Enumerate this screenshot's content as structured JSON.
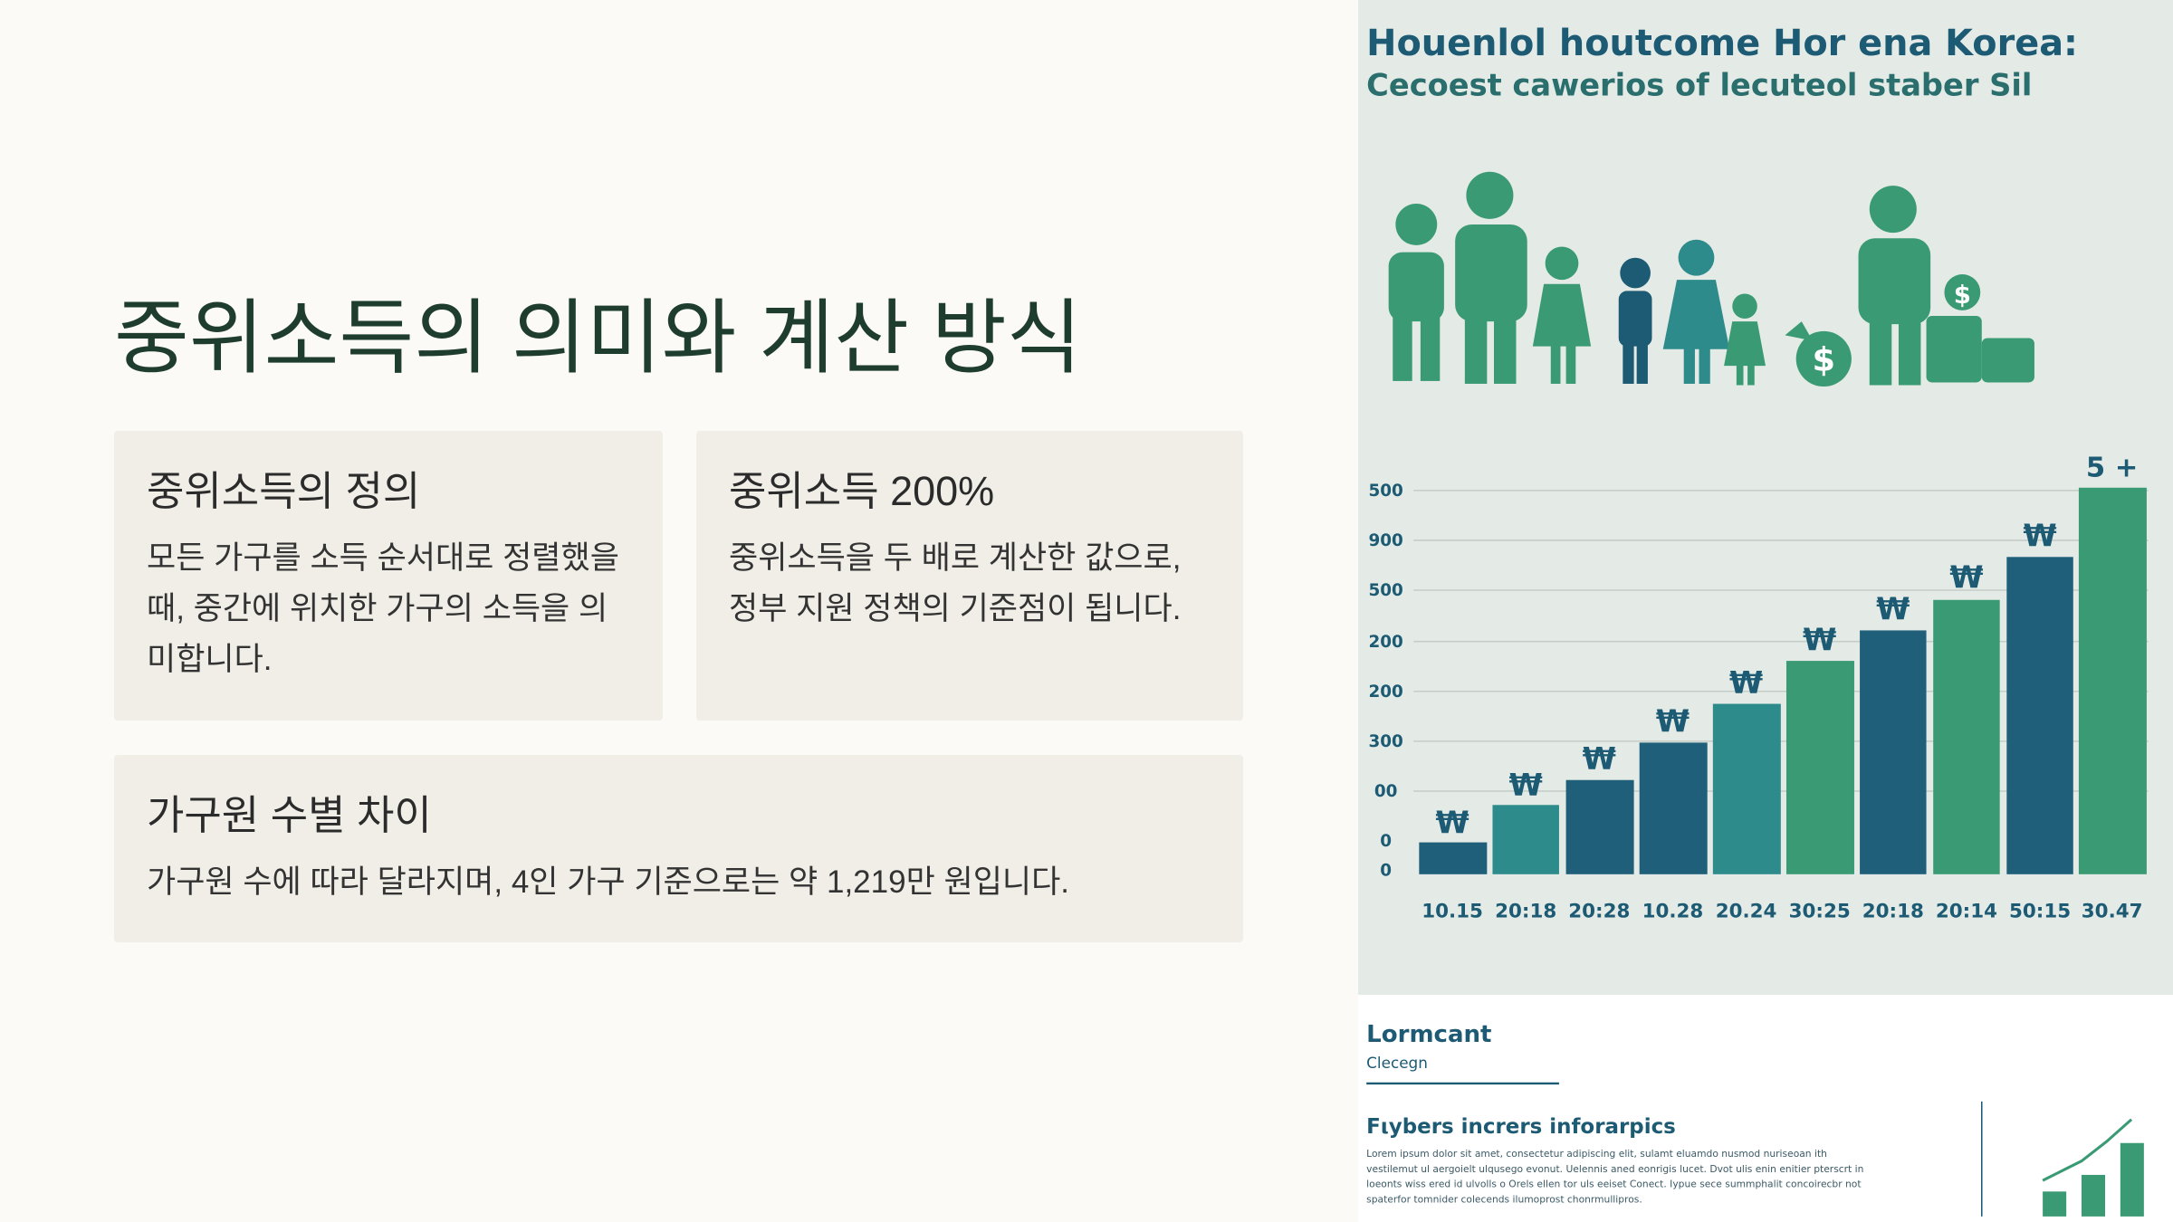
{
  "slide": {
    "title": "중위소득의 의미와 계산 방식",
    "cards": [
      {
        "heading": "중위소득의 정의",
        "body": "모든 가구를 소득 순서대로 정렬했을 때, 중간에 위치한 가구의 소득을 의미합니다."
      },
      {
        "heading": "중위소득 200%",
        "body": "중위소득을 두 배로 계산한 값으로, 정부 지원 정책의 기준점이 됩니다."
      },
      {
        "heading": "가구원 수별 차이",
        "body": "가구원 수에 따라 달라지며, 4인 가구 기준으로는 약 1,219만 원입니다."
      }
    ]
  },
  "image": {
    "title_lines": [
      "Houenlol houtcome Hor ena Korea:",
      "Cecoest cawerios of lecuteol staber Sil"
    ],
    "top_label": "5 +",
    "y_labels": [
      "500",
      "900",
      "500",
      "200",
      "200",
      "300",
      "00",
      "0",
      "0"
    ],
    "x_labels": [
      "10.15",
      "20:18",
      "20:28",
      "10.28",
      "20.24",
      "30:25",
      "20:18",
      "20:14",
      "50:15",
      "30.47"
    ],
    "bar_symbols": [
      "₩",
      "₩",
      "₩",
      "₩",
      "₩",
      "₩",
      "₩",
      "₩",
      "₩"
    ],
    "footer": {
      "heading": "Lormcant",
      "subheading": "Clecegn",
      "section_title": "Fιybers incrers inforarpics",
      "body_lines": [
        "Lorem ipsum dolor sit amet, consectetur adipiscing elit, sulamt eluamdo nusmod nuriseoan ith",
        "vestilemut ul aergoielt ulqusego evonut. Uelennis aned eonrigis lucet. Dvot ulis enin enitier pterscrt in",
        "loeonts wiss ered id ulvolls o Orels ellen tor uls eeiset Conect. Iypue sece summphalit concoirecbr not",
        "spaterfor tomnider colecends ilumoprost chonrmullipros."
      ]
    }
  }
}
